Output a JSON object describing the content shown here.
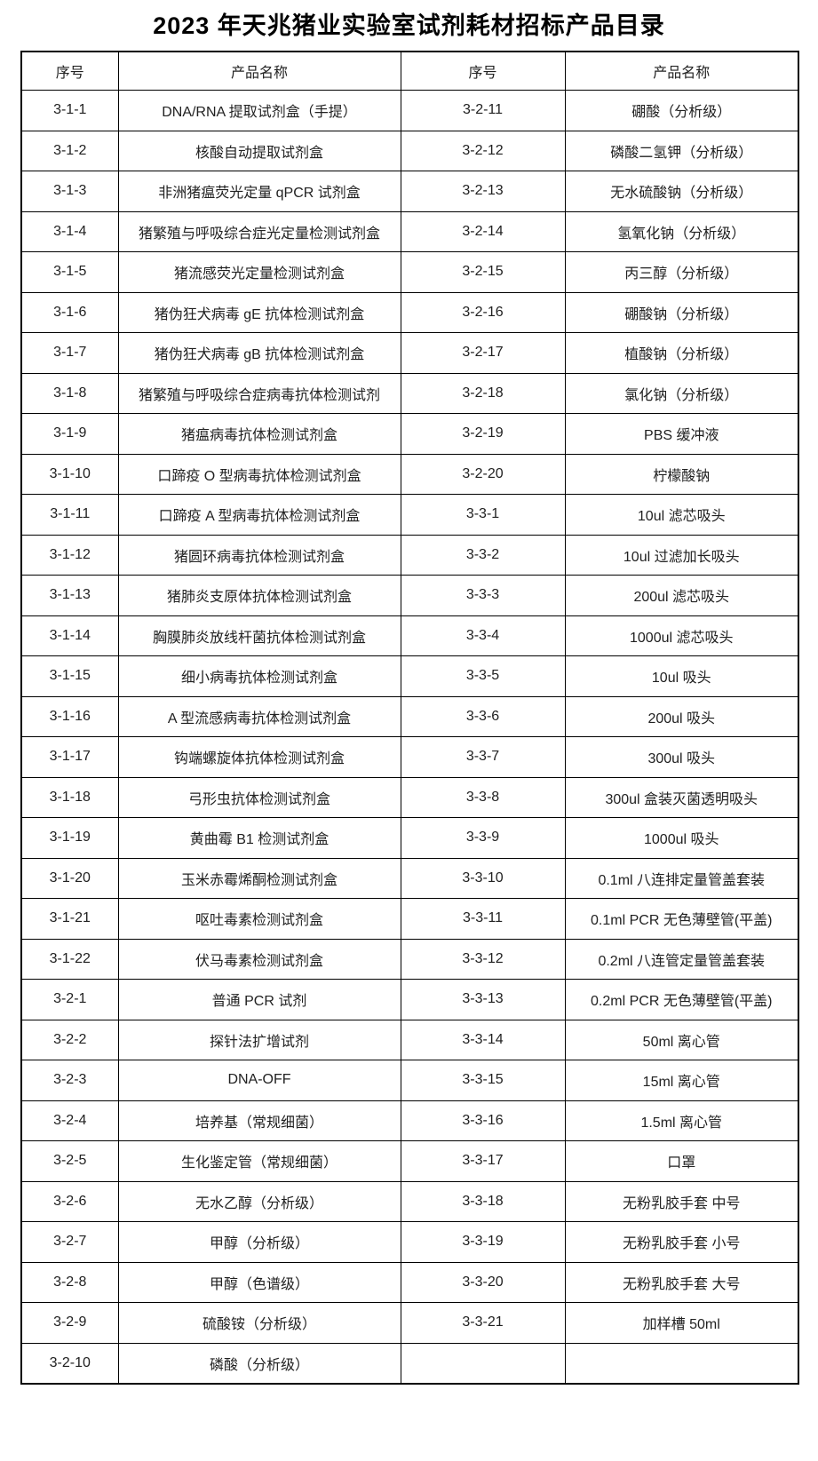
{
  "title": "2023 年天兆猪业实验室试剂耗材招标产品目录",
  "table": {
    "headers": [
      "序号",
      "产品名称",
      "序号",
      "产品名称"
    ],
    "rows": [
      [
        "3-1-1",
        "DNA/RNA 提取试剂盒（手提）",
        "3-2-11",
        "硼酸（分析级）"
      ],
      [
        "3-1-2",
        "核酸自动提取试剂盒",
        "3-2-12",
        "磷酸二氢钾（分析级）"
      ],
      [
        "3-1-3",
        "非洲猪瘟荧光定量 qPCR 试剂盒",
        "3-2-13",
        "无水硫酸钠（分析级）"
      ],
      [
        "3-1-4",
        "猪繁殖与呼吸综合症光定量检测试剂盒",
        "3-2-14",
        "氢氧化钠（分析级）"
      ],
      [
        "3-1-5",
        "猪流感荧光定量检测试剂盒",
        "3-2-15",
        "丙三醇（分析级）"
      ],
      [
        "3-1-6",
        "猪伪狂犬病毒 gE 抗体检测试剂盒",
        "3-2-16",
        "硼酸钠（分析级）"
      ],
      [
        "3-1-7",
        "猪伪狂犬病毒 gB 抗体检测试剂盒",
        "3-2-17",
        "植酸钠（分析级）"
      ],
      [
        "3-1-8",
        "猪繁殖与呼吸综合症病毒抗体检测试剂",
        "3-2-18",
        "氯化钠（分析级）"
      ],
      [
        "3-1-9",
        "猪瘟病毒抗体检测试剂盒",
        "3-2-19",
        "PBS 缓冲液"
      ],
      [
        "3-1-10",
        "口蹄疫 O 型病毒抗体检测试剂盒",
        "3-2-20",
        "柠檬酸钠"
      ],
      [
        "3-1-11",
        "口蹄疫 A 型病毒抗体检测试剂盒",
        "3-3-1",
        "10ul 滤芯吸头"
      ],
      [
        "3-1-12",
        "猪圆环病毒抗体检测试剂盒",
        "3-3-2",
        "10ul 过滤加长吸头"
      ],
      [
        "3-1-13",
        "猪肺炎支原体抗体检测试剂盒",
        "3-3-3",
        "200ul 滤芯吸头"
      ],
      [
        "3-1-14",
        "胸膜肺炎放线杆菌抗体检测试剂盒",
        "3-3-4",
        "1000ul 滤芯吸头"
      ],
      [
        "3-1-15",
        "细小病毒抗体检测试剂盒",
        "3-3-5",
        "10ul 吸头"
      ],
      [
        "3-1-16",
        "A 型流感病毒抗体检测试剂盒",
        "3-3-6",
        "200ul 吸头"
      ],
      [
        "3-1-17",
        "钩端螺旋体抗体检测试剂盒",
        "3-3-7",
        "300ul 吸头"
      ],
      [
        "3-1-18",
        "弓形虫抗体检测试剂盒",
        "3-3-8",
        "300ul 盒装灭菌透明吸头"
      ],
      [
        "3-1-19",
        "黄曲霉 B1 检测试剂盒",
        "3-3-9",
        "1000ul 吸头"
      ],
      [
        "3-1-20",
        "玉米赤霉烯酮检测试剂盒",
        "3-3-10",
        "0.1ml 八连排定量管盖套装"
      ],
      [
        "3-1-21",
        "呕吐毒素检测试剂盒",
        "3-3-11",
        "0.1ml PCR 无色薄壁管(平盖)"
      ],
      [
        "3-1-22",
        "伏马毒素检测试剂盒",
        "3-3-12",
        "0.2ml 八连管定量管盖套装"
      ],
      [
        "3-2-1",
        "普通 PCR 试剂",
        "3-3-13",
        "0.2ml PCR 无色薄壁管(平盖)"
      ],
      [
        "3-2-2",
        "探针法扩增试剂",
        "3-3-14",
        "50ml 离心管"
      ],
      [
        "3-2-3",
        "DNA-OFF",
        "3-3-15",
        "15ml 离心管"
      ],
      [
        "3-2-4",
        "培养基（常规细菌）",
        "3-3-16",
        "1.5ml 离心管"
      ],
      [
        "3-2-5",
        "生化鉴定管（常规细菌）",
        "3-3-17",
        "口罩"
      ],
      [
        "3-2-6",
        "无水乙醇（分析级）",
        "3-3-18",
        "无粉乳胶手套 中号"
      ],
      [
        "3-2-7",
        "甲醇（分析级）",
        "3-3-19",
        "无粉乳胶手套 小号"
      ],
      [
        "3-2-8",
        "甲醇（色谱级）",
        "3-3-20",
        "无粉乳胶手套 大号"
      ],
      [
        "3-2-9",
        "硫酸铵（分析级）",
        "3-3-21",
        "加样槽 50ml"
      ],
      [
        "3-2-10",
        "磷酸（分析级）",
        "",
        ""
      ]
    ]
  }
}
